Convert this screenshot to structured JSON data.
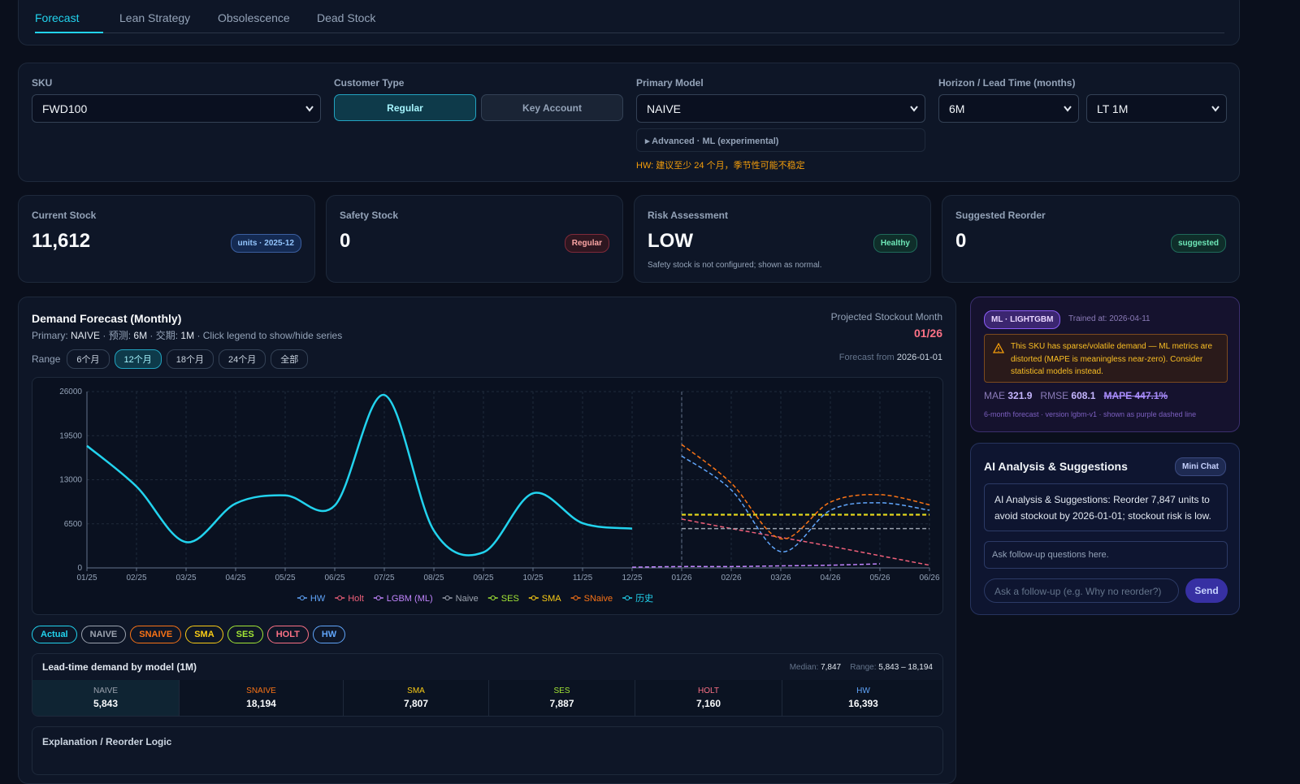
{
  "tabs": [
    "Forecast",
    "Lean Strategy",
    "Obsolescence",
    "Dead Stock"
  ],
  "filters": {
    "sku_label": "SKU",
    "sku": "FWD100",
    "customer_label": "Customer Type",
    "customer_options": [
      "Regular",
      "Key Account"
    ],
    "model_label": "Primary Model",
    "model": "NAIVE",
    "advanced": "Advanced · ML (experimental)",
    "warning": "HW: 建议至少 24 个月，季节性可能不稳定",
    "horizon_label": "Horizon / Lead Time (months)",
    "horizon": "6M",
    "lead_time": "LT 1M"
  },
  "cards": [
    {
      "label": "Current Stock",
      "value": "11,612",
      "badge": "units · 2025-12"
    },
    {
      "label": "Safety Stock",
      "value": "0",
      "badge": "Regular"
    },
    {
      "label": "Risk Assessment",
      "value": "LOW",
      "badge": "Healthy",
      "note": "Safety stock is not configured; shown as normal."
    },
    {
      "label": "Suggested Reorder",
      "value": "0",
      "badge": "suggested"
    }
  ],
  "forecast": {
    "title": "Demand Forecast (Monthly)",
    "subtitle": {
      "primary_label": "Primary:",
      "primary": "NAIVE",
      "horizon_label": "· 预测:",
      "horizon": "6M",
      "lead_label": "· 交期:",
      "lead": "1M",
      "hint": "· Click legend to show/hide series"
    },
    "stockout_label": "Projected Stockout Month",
    "stockout": "01/26",
    "range_label": "Range",
    "ranges": [
      "6个月",
      "12个月",
      "18个月",
      "24个月",
      "全部"
    ],
    "forecast_from_label": "Forecast from",
    "forecast_from": "2026-01-01",
    "chips": [
      {
        "label": "Actual",
        "color": "#22d3ee"
      },
      {
        "label": "NAIVE",
        "color": "#9ca3af"
      },
      {
        "label": "SNAIVE",
        "color": "#f97316"
      },
      {
        "label": "SMA",
        "color": "#facc15"
      },
      {
        "label": "SES",
        "color": "#a3e635"
      },
      {
        "label": "HOLT",
        "color": "#fb7185"
      },
      {
        "label": "HW",
        "color": "#60a5fa"
      }
    ],
    "lead_time": {
      "title": "Lead-time demand by model (1M)",
      "median_label": "Median:",
      "median": "7,847",
      "range_label": "Range:",
      "range": "5,843 – 18,194",
      "models": [
        {
          "name": "NAIVE",
          "value": "5,843",
          "color": "#9ca3af"
        },
        {
          "name": "SNAIVE",
          "value": "18,194",
          "color": "#f97316"
        },
        {
          "name": "SMA",
          "value": "7,807",
          "color": "#facc15"
        },
        {
          "name": "SES",
          "value": "7,887",
          "color": "#a3e635"
        },
        {
          "name": "HOLT",
          "value": "7,160",
          "color": "#fb7185"
        },
        {
          "name": "HW",
          "value": "16,393",
          "color": "#60a5fa"
        }
      ]
    },
    "explanation": "Explanation / Reorder Logic"
  },
  "ml": {
    "badge": "ML · LIGHTGBM",
    "trained": "Trained at: 2026-04-11",
    "warning": "This SKU has sparse/volatile demand — ML metrics are distorted (MAPE is meaningless near-zero). Consider statistical models instead.",
    "mae_label": "MAE",
    "mae": "321.9",
    "rmse_label": "RMSE",
    "rmse": "608.1",
    "mape": "MAPE 447.1%",
    "footnote": "6-month forecast · version lgbm-v1 · shown as purple dashed line"
  },
  "ai": {
    "title": "AI Analysis & Suggestions",
    "badge": "Mini Chat",
    "message": "AI Analysis & Suggestions: Reorder 7,847 units to avoid stockout by 2026-01-01; stockout risk is low.",
    "followups": "Ask follow-up questions here.",
    "input": "Ask a follow-up (e.g. Why no reorder?)",
    "send": "Send"
  },
  "chart_data": {
    "type": "line",
    "categories": [
      "01/25",
      "02/25",
      "03/25",
      "04/25",
      "05/25",
      "06/25",
      "07/25",
      "08/25",
      "09/25",
      "10/25",
      "11/25",
      "12/25",
      "01/26",
      "02/26",
      "03/26",
      "04/26",
      "05/26",
      "06/26"
    ],
    "ylim": [
      0,
      26000
    ],
    "yticks": [
      0,
      6500,
      13000,
      19500,
      26000
    ],
    "grid": true,
    "series": [
      {
        "name": "HW",
        "color": "#60a5fa",
        "style": "dashed",
        "values": [
          null,
          null,
          null,
          null,
          null,
          null,
          null,
          null,
          null,
          null,
          null,
          null,
          16500,
          11500,
          2400,
          8500,
          9600,
          8500
        ]
      },
      {
        "name": "Holt",
        "color": "#f0607a",
        "style": "dashed",
        "values": [
          null,
          null,
          null,
          null,
          null,
          null,
          null,
          null,
          null,
          null,
          null,
          null,
          7200,
          5800,
          4500,
          3200,
          1800,
          400
        ]
      },
      {
        "name": "LGBM (ML)",
        "color": "#c084fc",
        "style": "dashed",
        "values": [
          null,
          null,
          null,
          null,
          null,
          null,
          null,
          null,
          null,
          null,
          null,
          100,
          200,
          200,
          300,
          400,
          600,
          null
        ]
      },
      {
        "name": "Naive",
        "color": "#9ca3af",
        "style": "dashed",
        "values": [
          null,
          null,
          null,
          null,
          null,
          null,
          null,
          null,
          null,
          null,
          null,
          null,
          5800,
          5800,
          5800,
          5800,
          5800,
          5800
        ]
      },
      {
        "name": "SES",
        "color": "#a3e635",
        "style": "dashed",
        "values": [
          null,
          null,
          null,
          null,
          null,
          null,
          null,
          null,
          null,
          null,
          null,
          null,
          7900,
          7900,
          7900,
          7900,
          7900,
          7900
        ]
      },
      {
        "name": "SMA",
        "color": "#facc15",
        "style": "dashed",
        "values": [
          null,
          null,
          null,
          null,
          null,
          null,
          null,
          null,
          null,
          null,
          null,
          null,
          7800,
          7800,
          7800,
          7800,
          7800,
          7800
        ]
      },
      {
        "name": "SNaive",
        "color": "#f97316",
        "style": "dashed",
        "values": [
          null,
          null,
          null,
          null,
          null,
          null,
          null,
          null,
          null,
          null,
          null,
          null,
          18200,
          12500,
          4300,
          9700,
          10800,
          9300
        ]
      },
      {
        "name": "历史",
        "color": "#22d3ee",
        "style": "solid",
        "values": [
          18000,
          12000,
          3800,
          9500,
          10700,
          9200,
          25500,
          5500,
          2300,
          11000,
          6600,
          5800,
          null,
          null,
          null,
          null,
          null,
          null
        ]
      }
    ]
  }
}
